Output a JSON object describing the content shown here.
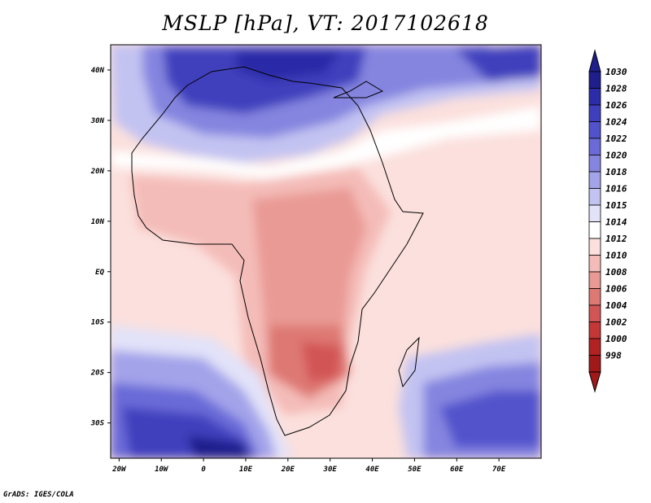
{
  "title": "MSLP [hPa], VT: 2017102618",
  "credit": "GrADS: IGES/COLA",
  "map": {
    "lon_range": [
      -22,
      80
    ],
    "lat_range": [
      -37,
      45
    ],
    "lon_ticks": [
      {
        "value": -20,
        "label": "20W"
      },
      {
        "value": -10,
        "label": "10W"
      },
      {
        "value": 0,
        "label": "0"
      },
      {
        "value": 10,
        "label": "10E"
      },
      {
        "value": 20,
        "label": "20E"
      },
      {
        "value": 30,
        "label": "30E"
      },
      {
        "value": 40,
        "label": "40E"
      },
      {
        "value": 50,
        "label": "50E"
      },
      {
        "value": 60,
        "label": "60E"
      },
      {
        "value": 70,
        "label": "70E"
      }
    ],
    "lat_ticks": [
      {
        "value": 40,
        "label": "40N"
      },
      {
        "value": 30,
        "label": "30N"
      },
      {
        "value": 20,
        "label": "20N"
      },
      {
        "value": 10,
        "label": "10N"
      },
      {
        "value": 0,
        "label": "EQ"
      },
      {
        "value": -10,
        "label": "10S"
      },
      {
        "value": -20,
        "label": "20S"
      },
      {
        "value": -30,
        "label": "30S"
      }
    ]
  },
  "colorbar": {
    "levels": [
      "1030",
      "1028",
      "1026",
      "1024",
      "1022",
      "1020",
      "1018",
      "1016",
      "1015",
      "1014",
      "1012",
      "1010",
      "1008",
      "1006",
      "1004",
      "1002",
      "1000",
      "998"
    ],
    "colors": [
      "#1e1e8c",
      "#2c2ca8",
      "#3f3fbd",
      "#5252cc",
      "#6a6ad8",
      "#8585e0",
      "#a3a3ea",
      "#c3c3f2",
      "#e2e2f9",
      "#ffffff",
      "#fbe0dd",
      "#f4bcb8",
      "#e99a94",
      "#de7873",
      "#d25555",
      "#c53737",
      "#b22222",
      "#a01818"
    ]
  }
}
